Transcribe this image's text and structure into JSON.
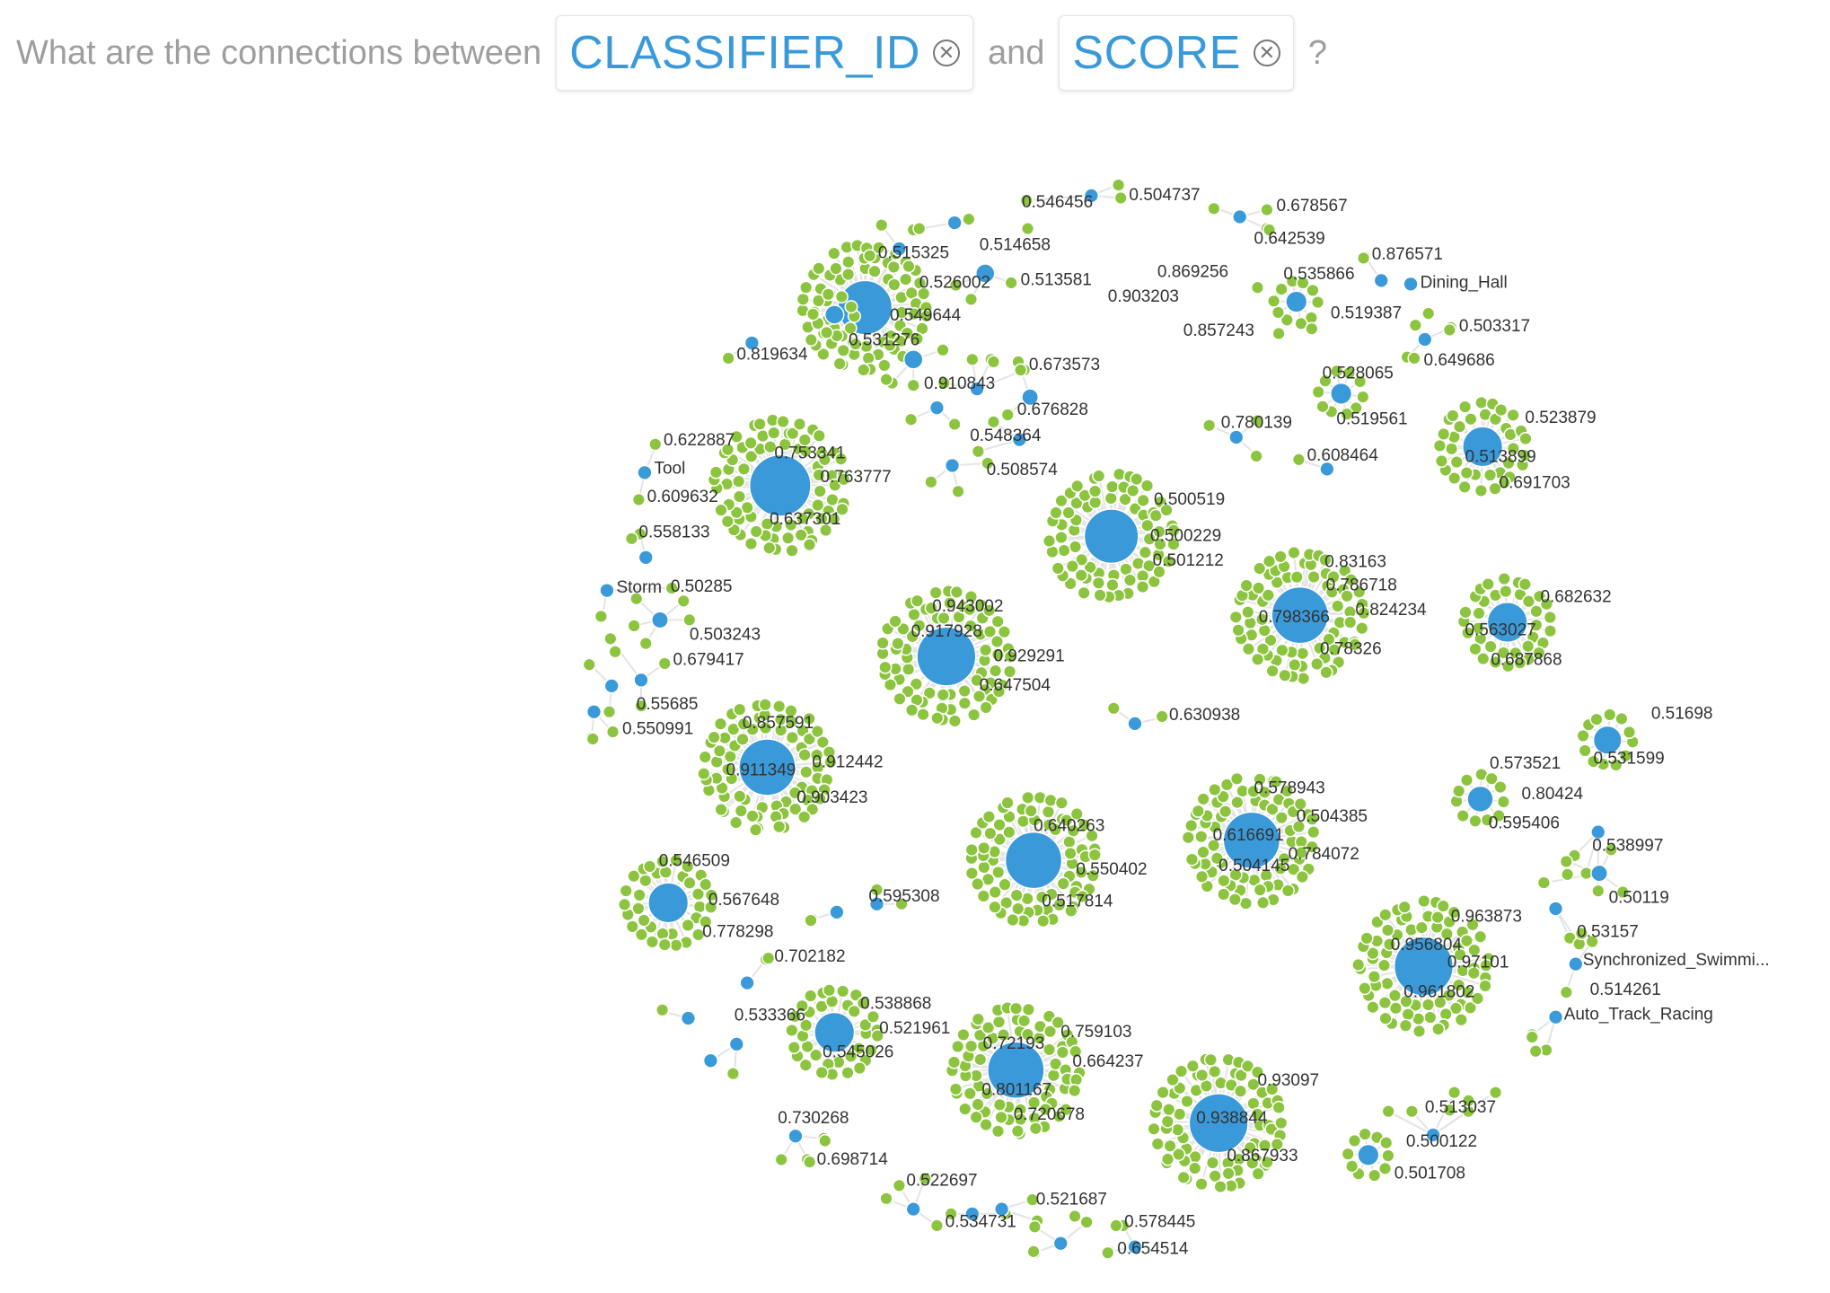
{
  "question": {
    "prefix": "What are the connections between",
    "connector": "and",
    "suffix": "?",
    "chips": [
      {
        "label": "CLASSIFIER_ID",
        "remove_icon": "circle-x-icon"
      },
      {
        "label": "SCORE",
        "remove_icon": "circle-x-icon"
      }
    ]
  },
  "colors": {
    "classifier_node": "#3a9ad9",
    "score_node": "#8cc43f",
    "edge": "#e4e4e4",
    "label_text": "#333333",
    "question_text": "#9e9e9e",
    "chip_text": "#3a9ad9"
  },
  "named_nodes": [
    "Tool",
    "Storm",
    "Dining_Hall",
    "Synchronized_Swimmi...",
    "Auto_Track_Racing"
  ],
  "score_labels": [
    "0.546456",
    "0.504737",
    "0.678567",
    "0.642539",
    "0.515325",
    "0.514658",
    "0.876571",
    "0.869256",
    "0.535866",
    "0.526002",
    "0.513581",
    "0.903203",
    "0.549644",
    "0.519387",
    "0.503317",
    "0.857243",
    "0.531276",
    "0.819634",
    "0.649686",
    "0.673573",
    "0.910843",
    "0.528065",
    "0.676828",
    "0.780139",
    "0.519561",
    "0.523879",
    "0.548364",
    "0.622887",
    "0.753341",
    "0.608464",
    "0.513899",
    "0.763777",
    "0.508574",
    "0.691703",
    "0.609632",
    "0.637301",
    "0.500519",
    "0.558133",
    "0.500229",
    "0.501212",
    "0.83163",
    "0.50285",
    "0.786718",
    "0.682632",
    "0.943002",
    "0.798366",
    "0.824234",
    "0.503243",
    "0.917928",
    "0.563027",
    "0.929291",
    "0.679417",
    "0.78326",
    "0.687868",
    "0.647504",
    "0.55685",
    "0.550991",
    "0.630938",
    "0.51698",
    "0.857591",
    "0.912442",
    "0.911349",
    "0.573521",
    "0.531599",
    "0.903423",
    "0.578943",
    "0.80424",
    "0.504385",
    "0.640263",
    "0.595406",
    "0.616691",
    "0.538997",
    "0.784072",
    "0.546509",
    "0.550402",
    "0.504145",
    "0.567648",
    "0.50119",
    "0.595308",
    "0.517814",
    "0.963873",
    "0.778298",
    "0.53157",
    "0.956804",
    "0.702182",
    "0.97101",
    "0.514261",
    "0.961802",
    "0.538868",
    "0.533366",
    "0.521961",
    "0.759103",
    "0.545026",
    "0.72193",
    "0.664237",
    "0.801167",
    "0.93097",
    "0.720678",
    "0.730268",
    "0.938844",
    "0.513037",
    "0.698714",
    "0.500122",
    "0.867933",
    "0.501708",
    "0.522697",
    "0.521687",
    "0.534731",
    "0.578445",
    "0.654514"
  ]
}
